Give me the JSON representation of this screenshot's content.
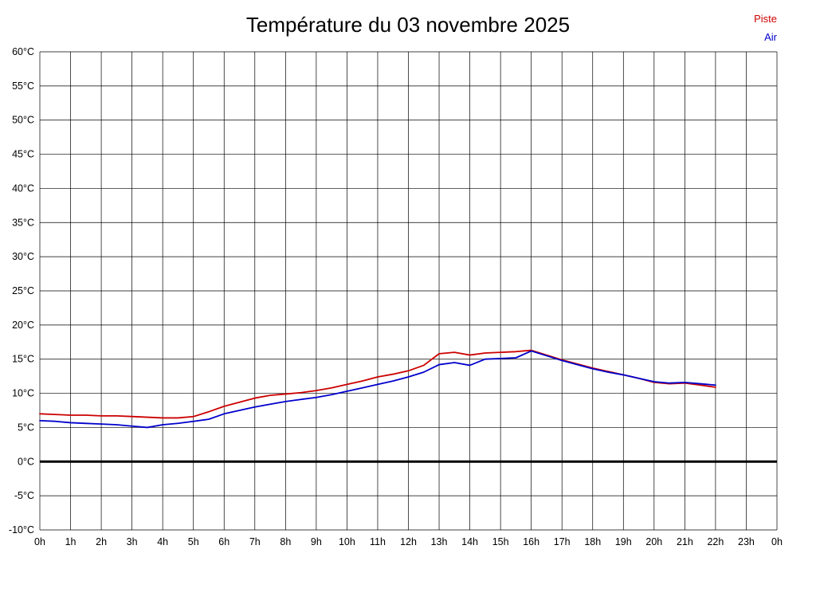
{
  "title": "Température du 03 novembre 2025",
  "legend": {
    "items": [
      {
        "label": "Piste",
        "color": "#cc0000"
      },
      {
        "label": "Air",
        "color": "#0000cc"
      }
    ]
  },
  "chart_data": {
    "type": "line",
    "title": "Température du 03 novembre 2025",
    "xlabel": "",
    "ylabel": "",
    "x_range": [
      0,
      24
    ],
    "ylim": [
      -10,
      60
    ],
    "grid": true,
    "zero_line": true,
    "legend_position": "top-right",
    "x_tick_labels": [
      "0h",
      "1h",
      "2h",
      "3h",
      "4h",
      "5h",
      "6h",
      "7h",
      "8h",
      "9h",
      "10h",
      "11h",
      "12h",
      "13h",
      "14h",
      "15h",
      "16h",
      "17h",
      "18h",
      "19h",
      "20h",
      "21h",
      "22h",
      "23h",
      "0h"
    ],
    "y_ticks": [
      60,
      55,
      50,
      45,
      40,
      35,
      30,
      25,
      20,
      15,
      10,
      5,
      0,
      -5,
      -10
    ],
    "y_tick_labels": [
      "60°C",
      "55°C",
      "50°C",
      "45°C",
      "40°C",
      "35°C",
      "30°C",
      "25°C",
      "20°C",
      "15°C",
      "10°C",
      "5°C",
      "0°C",
      "-5°C",
      "-10°C"
    ],
    "series": [
      {
        "name": "Piste",
        "color": "#cc0000",
        "x": [
          0,
          0.5,
          1,
          1.5,
          2,
          2.5,
          3,
          3.5,
          4,
          4.5,
          5,
          5.5,
          6,
          6.5,
          7,
          7.5,
          8,
          8.5,
          9,
          9.5,
          10,
          10.5,
          11,
          11.5,
          12,
          12.5,
          13,
          13.5,
          14,
          14.5,
          15,
          15.5,
          16,
          16.5,
          17,
          17.5,
          18,
          18.5,
          19,
          19.5,
          20,
          20.5,
          21,
          21.5,
          22
        ],
        "values": [
          7.0,
          6.9,
          6.8,
          6.8,
          6.7,
          6.7,
          6.6,
          6.5,
          6.4,
          6.4,
          6.6,
          7.3,
          8.1,
          8.7,
          9.3,
          9.7,
          9.9,
          10.1,
          10.4,
          10.8,
          11.3,
          11.8,
          12.4,
          12.8,
          13.3,
          14.1,
          15.8,
          16.0,
          15.6,
          15.9,
          16.0,
          16.1,
          16.3,
          15.6,
          14.9,
          14.3,
          13.7,
          13.2,
          12.7,
          12.2,
          11.6,
          11.4,
          11.5,
          11.2,
          10.9
        ]
      },
      {
        "name": "Air",
        "color": "#0000cc",
        "x": [
          0,
          0.5,
          1,
          1.5,
          2,
          2.5,
          3,
          3.5,
          4,
          4.5,
          5,
          5.5,
          6,
          6.5,
          7,
          7.5,
          8,
          8.5,
          9,
          9.5,
          10,
          10.5,
          11,
          11.5,
          12,
          12.5,
          13,
          13.5,
          14,
          14.5,
          15,
          15.5,
          16,
          16.5,
          17,
          17.5,
          18,
          18.5,
          19,
          19.5,
          20,
          20.5,
          21,
          21.5,
          22
        ],
        "values": [
          6.0,
          5.9,
          5.7,
          5.6,
          5.5,
          5.4,
          5.2,
          5.0,
          5.4,
          5.6,
          5.9,
          6.2,
          7.0,
          7.5,
          8.0,
          8.4,
          8.8,
          9.1,
          9.4,
          9.8,
          10.3,
          10.8,
          11.3,
          11.8,
          12.4,
          13.1,
          14.2,
          14.5,
          14.1,
          15.0,
          15.1,
          15.2,
          16.2,
          15.5,
          14.8,
          14.2,
          13.6,
          13.1,
          12.7,
          12.2,
          11.7,
          11.5,
          11.6,
          11.4,
          11.2
        ]
      }
    ]
  },
  "style": {
    "grid_color": "#000000",
    "axis_label_color": "#000000",
    "zero_line_color": "#000000",
    "background": "#ffffff"
  }
}
